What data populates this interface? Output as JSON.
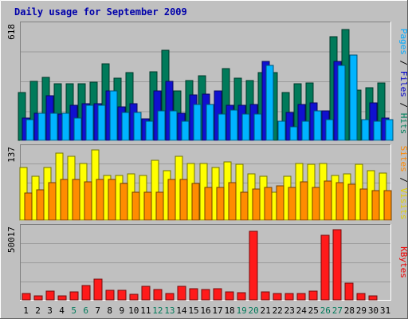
{
  "chart_data": {
    "type": "bar",
    "title": "Daily usage for September 2009",
    "days": [
      "1",
      "2",
      "3",
      "4",
      "5",
      "6",
      "7",
      "8",
      "9",
      "10",
      "11",
      "12",
      "13",
      "14",
      "15",
      "16",
      "17",
      "18",
      "19",
      "20",
      "21",
      "22",
      "23",
      "24",
      "25",
      "26",
      "27",
      "28",
      "29",
      "30",
      "31"
    ],
    "weekend_days": [
      "5",
      "6",
      "12",
      "13",
      "19",
      "20",
      "26",
      "27"
    ],
    "panels": [
      {
        "id": "top",
        "ymax_label": "618",
        "ylim": [
          0,
          618
        ],
        "side_label": [
          {
            "text": "Pages",
            "color": "#00aaff"
          },
          {
            "text": " / ",
            "color": "#000000"
          },
          {
            "text": "Files",
            "color": "#0000cc"
          },
          {
            "text": " / ",
            "color": "#000000"
          },
          {
            "text": "Hits",
            "color": "#00805c"
          }
        ],
        "series": [
          {
            "name": "Hits",
            "color": "#007a5a",
            "values": [
              258,
              317,
              338,
              303,
              303,
              303,
              313,
              414,
              334,
              364,
              0,
              370,
              483,
              266,
              320,
              348,
              0,
              386,
              334,
              323,
              364,
              364,
              258,
              303,
              308,
              0,
              556,
              597,
              272,
              283,
              307
            ]
          },
          {
            "name": "Files",
            "color": "#1010d0",
            "values": [
              119,
              144,
              240,
              142,
              188,
              199,
              199,
              266,
              180,
              196,
              114,
              268,
              317,
              145,
              246,
              248,
              266,
              188,
              188,
              193,
              426,
              0,
              151,
              193,
              201,
              158,
              426,
              0,
              0,
              200,
              119
            ]
          },
          {
            "name": "Pages",
            "color": "#00b4ff",
            "values": [
              112,
              145,
              147,
              144,
              120,
              188,
              188,
              266,
              151,
              150,
              104,
              160,
              160,
              104,
              194,
              192,
              140,
              164,
              142,
              142,
              404,
              104,
              74,
              104,
              157,
              113,
              404,
              460,
              112,
              103,
              110
            ]
          }
        ]
      },
      {
        "id": "middle",
        "ymax_label": "137",
        "ylim": [
          0,
          137
        ],
        "side_label": [
          {
            "text": "Sites",
            "color": "#ff8800"
          },
          {
            "text": " / ",
            "color": "#000000"
          },
          {
            "text": "Visits",
            "color": "#e0d000"
          }
        ],
        "series": [
          {
            "name": "Visits",
            "color": "#ffff00",
            "values": [
              101,
              83,
              101,
              128,
              122,
              108,
              134,
              85,
              86,
              88,
              85,
              114,
              95,
              122,
              108,
              108,
              100,
              111,
              106,
              88,
              84,
              54,
              84,
              108,
              106,
              108,
              85,
              88,
              107,
              95,
              90
            ]
          },
          {
            "name": "Sites",
            "color": "#ff8c00",
            "values": [
              51,
              58,
              71,
              77,
              77,
              73,
              78,
              77,
              70,
              54,
              54,
              54,
              77,
              77,
              70,
              62,
              62,
              72,
              53,
              60,
              63,
              65,
              62,
              73,
              62,
              75,
              72,
              68,
              59,
              57,
              57
            ]
          }
        ]
      },
      {
        "id": "bottom",
        "ymax_label": "50017",
        "ylim": [
          0,
          50017
        ],
        "side_label": [
          {
            "text": "KBytes",
            "color": "#ee0000"
          }
        ],
        "series": [
          {
            "name": "KBytes",
            "color": "#ff1a1a",
            "values": [
              4200,
              2600,
              6300,
              3000,
              5500,
              10200,
              14700,
              6700,
              6500,
              3700,
              9500,
              7100,
              4200,
              9500,
              7700,
              7400,
              7800,
              5300,
              5000,
              48000,
              5500,
              4200,
              4200,
              4700,
              6300,
              45000,
              49000,
              11700,
              4600,
              3000,
              0
            ]
          }
        ]
      }
    ]
  }
}
